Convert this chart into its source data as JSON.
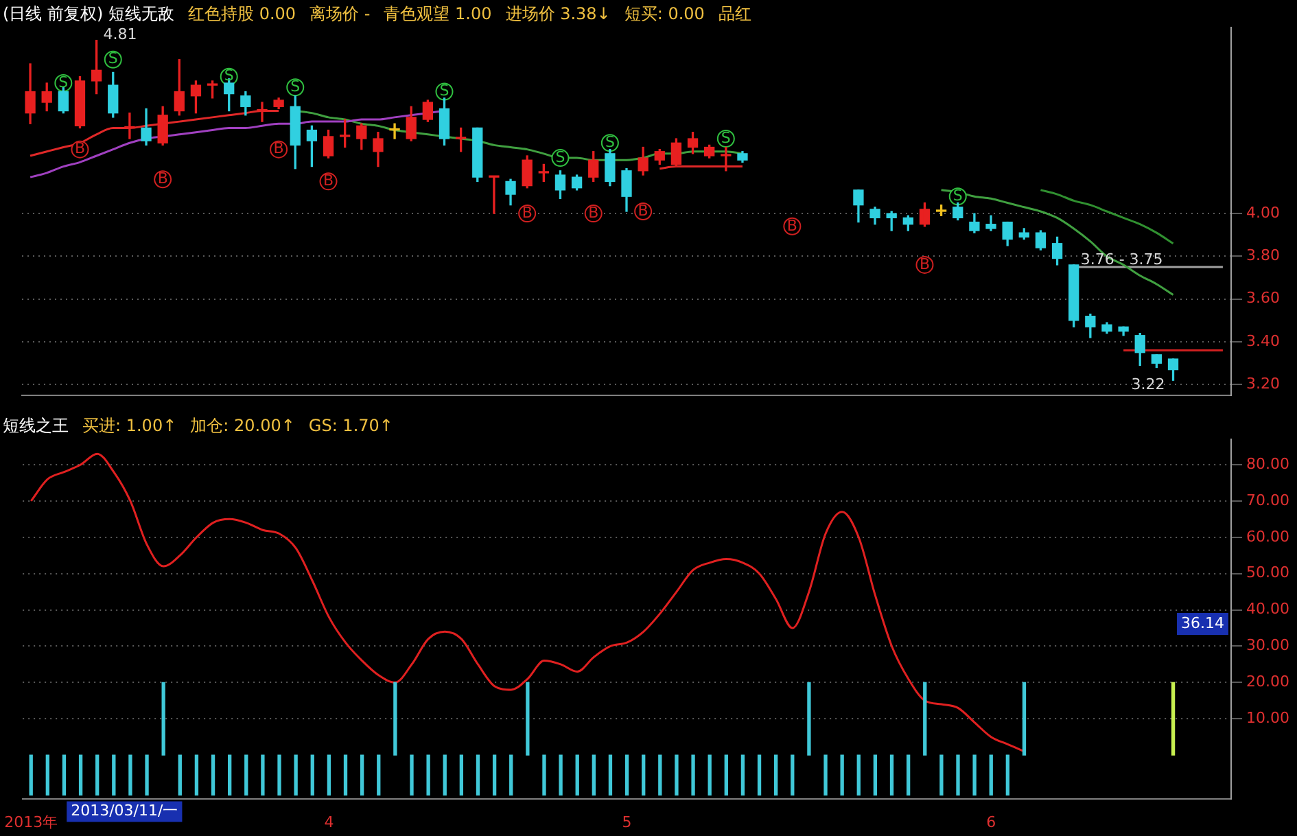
{
  "chart_data": [
    {
      "type": "candlestick",
      "title": "(日线 前复权) 短线无敌",
      "annotations": [
        "红色持股 0.00",
        "离场价 -",
        "青色观望 1.00",
        "进场价 3.38↓",
        "短买: 0.00",
        "品红"
      ],
      "categories": [
        null,
        null,
        null,
        null,
        null,
        null,
        null,
        null,
        null,
        null,
        null,
        null,
        null,
        null,
        null,
        null,
        null,
        null,
        null,
        null,
        null,
        null,
        null,
        null,
        null,
        null,
        null,
        null,
        null,
        null,
        null,
        null,
        null,
        null,
        null,
        null,
        null,
        null,
        null,
        null,
        null,
        null,
        null,
        null,
        null,
        null,
        null,
        null,
        null,
        null,
        null,
        null,
        null,
        null,
        null,
        null,
        null,
        null,
        null,
        null,
        null,
        null,
        null,
        null,
        null,
        null,
        null,
        null,
        null,
        null,
        null,
        null,
        null
      ],
      "ohlc": [
        [
          4.47,
          4.7,
          4.42,
          4.57
        ],
        [
          4.52,
          4.61,
          4.48,
          4.57
        ],
        [
          4.57,
          4.59,
          4.47,
          4.48
        ],
        [
          4.41,
          4.64,
          4.4,
          4.62
        ],
        [
          4.62,
          4.81,
          4.56,
          4.67
        ],
        [
          4.6,
          4.66,
          4.45,
          4.47
        ],
        [
          4.4,
          4.47,
          4.35,
          4.4
        ],
        [
          4.4,
          4.49,
          4.32,
          4.34
        ],
        [
          4.33,
          4.5,
          4.32,
          4.46
        ],
        [
          4.48,
          4.72,
          4.46,
          4.57
        ],
        [
          4.55,
          4.62,
          4.47,
          4.6
        ],
        [
          4.6,
          4.62,
          4.54,
          4.6
        ],
        [
          4.61,
          4.63,
          4.48,
          4.56
        ],
        [
          4.55,
          4.57,
          4.46,
          4.5
        ],
        [
          4.48,
          4.52,
          4.43,
          4.48
        ],
        [
          4.5,
          4.54,
          4.49,
          4.53
        ],
        [
          4.5,
          4.55,
          4.21,
          4.32
        ],
        [
          4.39,
          4.41,
          4.22,
          4.34
        ],
        [
          4.27,
          4.39,
          4.26,
          4.36
        ],
        [
          4.36,
          4.44,
          4.31,
          4.36
        ],
        [
          4.35,
          4.42,
          4.3,
          4.41
        ],
        [
          4.29,
          4.38,
          4.22,
          4.35
        ],
        [
          4.39,
          4.42,
          4.35,
          4.39
        ],
        [
          4.35,
          4.5,
          4.34,
          4.45
        ],
        [
          4.44,
          4.53,
          4.43,
          4.52
        ],
        [
          4.49,
          4.54,
          4.32,
          4.35
        ],
        [
          4.35,
          4.4,
          4.29,
          4.35
        ],
        [
          4.4,
          4.4,
          4.15,
          4.17
        ],
        [
          4.17,
          4.17,
          4.0,
          4.17
        ],
        [
          4.15,
          4.16,
          4.04,
          4.09
        ],
        [
          4.13,
          4.27,
          4.12,
          4.25
        ],
        [
          4.19,
          4.23,
          4.15,
          4.19
        ],
        [
          4.18,
          4.2,
          4.07,
          4.11
        ],
        [
          4.17,
          4.18,
          4.11,
          4.12
        ],
        [
          4.17,
          4.29,
          4.15,
          4.25
        ],
        [
          4.28,
          4.3,
          4.13,
          4.15
        ],
        [
          4.2,
          4.21,
          4.01,
          4.08
        ],
        [
          4.2,
          4.31,
          4.18,
          4.26
        ],
        [
          4.25,
          4.3,
          4.23,
          4.29
        ],
        [
          4.23,
          4.35,
          4.22,
          4.33
        ],
        [
          4.31,
          4.38,
          4.28,
          4.35
        ],
        [
          4.27,
          4.32,
          4.26,
          4.31
        ],
        [
          4.27,
          4.31,
          4.2,
          4.27
        ],
        [
          4.28,
          4.29,
          4.24,
          4.25
        ],
        null,
        null,
        null,
        null,
        null,
        null,
        [
          4.11,
          4.11,
          3.96,
          4.04
        ],
        [
          4.02,
          4.03,
          3.95,
          3.98
        ],
        [
          4.0,
          4.01,
          3.92,
          3.98
        ],
        [
          3.98,
          3.99,
          3.92,
          3.95
        ],
        [
          3.95,
          4.05,
          3.94,
          4.02
        ],
        [
          4.01,
          4.04,
          3.99,
          4.01
        ],
        [
          4.03,
          4.05,
          3.97,
          3.98
        ],
        [
          3.96,
          4.0,
          3.91,
          3.92
        ],
        [
          3.95,
          3.99,
          3.92,
          3.93
        ],
        [
          3.96,
          3.96,
          3.85,
          3.88
        ],
        [
          3.91,
          3.93,
          3.88,
          3.89
        ],
        [
          3.91,
          3.92,
          3.83,
          3.84
        ],
        [
          3.86,
          3.89,
          3.76,
          3.79
        ],
        [
          3.76,
          3.76,
          3.47,
          3.5
        ],
        [
          3.52,
          3.53,
          3.42,
          3.47
        ],
        [
          3.48,
          3.49,
          3.44,
          3.45
        ],
        [
          3.47,
          3.47,
          3.43,
          3.45
        ],
        [
          3.43,
          3.44,
          3.29,
          3.35
        ],
        [
          3.34,
          3.34,
          3.28,
          3.3
        ],
        [
          3.32,
          3.32,
          3.22,
          3.27
        ],
        null,
        null,
        null
      ],
      "colors": [
        "#e82020",
        "#e82020",
        "#30d0e0",
        "#e82020",
        "#e82020",
        "#30d0e0",
        "#e82020",
        "#30d0e0",
        "#e82020",
        "#e82020",
        "#e82020",
        "#e82020",
        "#30d0e0",
        "#30d0e0",
        "#e82020",
        "#e82020",
        "#30d0e0",
        "#30d0e0",
        "#e82020",
        "#e82020",
        "#e82020",
        "#e82020",
        "#f0c020",
        "#e82020",
        "#e82020",
        "#30d0e0",
        "#e82020",
        "#30d0e0",
        "#e82020",
        "#30d0e0",
        "#e82020",
        "#e82020",
        "#30d0e0",
        "#30d0e0",
        "#e82020",
        "#30d0e0",
        "#30d0e0",
        "#e82020",
        "#e82020",
        "#e82020",
        "#e82020",
        "#e82020",
        "#e82020",
        "#30d0e0",
        null,
        null,
        null,
        null,
        null,
        null,
        "#30d0e0",
        "#30d0e0",
        "#30d0e0",
        "#30d0e0",
        "#e82020",
        "#f0c020",
        "#30d0e0",
        "#30d0e0",
        "#30d0e0",
        "#30d0e0",
        "#30d0e0",
        "#30d0e0",
        "#30d0e0",
        "#30d0e0",
        "#30d0e0",
        "#30d0e0",
        "#30d0e0",
        "#30d0e0",
        "#30d0e0",
        "#30d0e0",
        null,
        null,
        null
      ],
      "value_labels": [
        null,
        null,
        null,
        null,
        "4.81",
        null,
        null,
        null,
        null,
        null,
        null,
        null,
        null,
        null,
        null,
        null,
        null,
        null,
        null,
        null,
        null,
        null,
        null,
        null,
        null,
        null,
        null,
        null,
        null,
        null,
        null,
        null,
        null,
        null,
        null,
        null,
        null,
        null,
        null,
        null,
        null,
        null,
        null,
        null,
        null,
        null,
        null,
        null,
        null,
        null,
        null,
        null,
        null,
        null,
        null,
        null,
        null,
        null,
        null,
        null,
        null,
        null,
        null,
        "3.76 - 3.75",
        null,
        null,
        null,
        null,
        null,
        "3.22",
        null,
        null,
        null
      ],
      "series": [
        {
          "type": "line",
          "color": "#e02828",
          "values": [
            4.27,
            4.29,
            4.31,
            4.33,
            4.37,
            4.4,
            4.4,
            4.41,
            4.42,
            4.43,
            4.44,
            4.45,
            4.46,
            4.47,
            4.48,
            4.48,
            null,
            null,
            null,
            null,
            null,
            null,
            null,
            null,
            null,
            null,
            null,
            null,
            null,
            null,
            null,
            null,
            null,
            null,
            null,
            null,
            null,
            null,
            4.21,
            4.22,
            4.22,
            4.22,
            4.22,
            4.22,
            null,
            null,
            null,
            null,
            null,
            null,
            null,
            null,
            null,
            null,
            null,
            null,
            null,
            null,
            null,
            null,
            null,
            null,
            null,
            null,
            null,
            null,
            null,
            null,
            null,
            null,
            null,
            null,
            null
          ]
        },
        {
          "type": "line",
          "color": "#a040c0",
          "values": [
            4.17,
            4.19,
            4.22,
            4.24,
            4.27,
            4.3,
            4.33,
            4.35,
            4.36,
            4.37,
            4.38,
            4.39,
            4.4,
            4.4,
            4.41,
            4.42,
            4.42,
            4.43,
            4.43,
            4.43,
            4.44,
            4.44,
            4.45,
            4.46,
            4.47,
            4.48,
            null,
            null,
            null,
            null,
            null,
            null,
            null,
            null,
            null,
            null,
            null,
            null,
            null,
            null,
            null,
            null,
            null,
            null,
            null,
            null,
            null,
            null,
            null,
            null,
            null,
            null,
            null,
            null,
            null,
            null,
            null,
            null,
            null,
            null,
            null,
            null,
            null,
            null,
            null,
            null,
            null,
            null,
            null,
            null,
            null,
            null,
            null
          ]
        },
        {
          "type": "line",
          "color": "#40a040",
          "values": [
            null,
            null,
            null,
            null,
            null,
            null,
            null,
            null,
            null,
            null,
            null,
            null,
            null,
            null,
            null,
            null,
            4.48,
            4.47,
            4.45,
            4.44,
            4.42,
            4.41,
            4.39,
            4.38,
            4.37,
            4.36,
            4.35,
            4.34,
            4.32,
            4.31,
            4.3,
            4.28,
            4.26,
            4.26,
            4.25,
            4.25,
            4.25,
            4.26,
            4.28,
            4.28,
            4.29,
            4.29,
            4.29,
            4.28,
            null,
            null,
            null,
            null,
            null,
            null,
            null,
            null,
            null,
            null,
            null,
            4.11,
            4.1,
            4.08,
            4.07,
            4.05,
            4.03,
            4.01,
            3.98,
            3.93,
            3.87,
            3.8,
            3.76,
            3.71,
            3.67,
            3.62,
            null,
            null,
            null
          ]
        },
        {
          "type": "line",
          "color": "#309030",
          "values": [
            null,
            null,
            null,
            null,
            null,
            null,
            null,
            null,
            null,
            null,
            null,
            null,
            null,
            null,
            null,
            null,
            null,
            null,
            null,
            null,
            null,
            null,
            null,
            null,
            null,
            null,
            null,
            null,
            null,
            null,
            null,
            null,
            null,
            null,
            null,
            null,
            null,
            null,
            null,
            null,
            null,
            null,
            null,
            null,
            null,
            null,
            null,
            null,
            null,
            null,
            null,
            null,
            null,
            null,
            null,
            null,
            null,
            null,
            null,
            null,
            null,
            4.11,
            4.09,
            4.06,
            4.04,
            4.01,
            3.98,
            3.95,
            3.91,
            3.86,
            null,
            null,
            null
          ]
        },
        {
          "type": "line",
          "color": "#a0a0a0",
          "values": [
            null,
            null,
            null,
            null,
            null,
            null,
            null,
            null,
            null,
            null,
            null,
            null,
            null,
            null,
            null,
            null,
            null,
            null,
            null,
            null,
            null,
            null,
            null,
            null,
            null,
            null,
            null,
            null,
            null,
            null,
            null,
            null,
            null,
            null,
            null,
            null,
            null,
            null,
            null,
            null,
            null,
            null,
            null,
            null,
            null,
            null,
            null,
            null,
            null,
            null,
            null,
            null,
            null,
            null,
            null,
            null,
            null,
            null,
            null,
            null,
            null,
            null,
            null,
            3.75,
            3.75,
            3.75,
            3.75,
            3.75,
            3.75,
            3.75,
            3.75,
            3.75,
            3.75
          ]
        },
        {
          "type": "line",
          "color": "#d02020",
          "values": [
            null,
            null,
            null,
            null,
            null,
            null,
            null,
            null,
            null,
            null,
            null,
            null,
            null,
            null,
            null,
            null,
            null,
            null,
            null,
            null,
            null,
            null,
            null,
            null,
            null,
            null,
            null,
            null,
            null,
            null,
            null,
            null,
            null,
            null,
            null,
            null,
            null,
            null,
            null,
            null,
            null,
            null,
            null,
            null,
            null,
            null,
            null,
            null,
            null,
            null,
            null,
            null,
            null,
            null,
            null,
            null,
            null,
            null,
            null,
            null,
            null,
            null,
            null,
            null,
            null,
            null,
            3.36,
            3.36,
            3.36,
            3.36,
            3.36,
            3.36,
            3.36
          ]
        },
        {
          "type": "scatter",
          "marker": "circle",
          "color": "#30c040",
          "values": [
            null,
            null,
            4.61,
            null,
            null,
            4.72,
            null,
            null,
            null,
            null,
            null,
            null,
            4.64,
            null,
            null,
            null,
            4.59,
            null,
            null,
            null,
            null,
            null,
            null,
            null,
            null,
            4.57,
            null,
            null,
            null,
            null,
            null,
            null,
            4.26,
            null,
            null,
            4.33,
            null,
            null,
            null,
            null,
            null,
            null,
            4.35,
            null,
            null,
            null,
            null,
            null,
            null,
            null,
            null,
            null,
            null,
            null,
            null,
            null,
            4.08,
            null,
            null,
            null,
            null,
            null,
            null,
            null,
            null,
            null,
            null,
            null,
            null,
            null,
            null,
            null,
            null
          ],
          "value_labels": [
            null,
            null,
            "S",
            null,
            null,
            "S",
            null,
            null,
            null,
            null,
            null,
            null,
            "S",
            null,
            null,
            null,
            "S",
            null,
            null,
            null,
            null,
            null,
            null,
            null,
            null,
            "S",
            null,
            null,
            null,
            null,
            null,
            null,
            "S",
            null,
            null,
            "S",
            null,
            null,
            null,
            null,
            null,
            null,
            "S",
            null,
            null,
            null,
            null,
            null,
            null,
            null,
            null,
            null,
            null,
            null,
            null,
            null,
            "S",
            null,
            null,
            null,
            null,
            null,
            null,
            null,
            null,
            null,
            null,
            null,
            null,
            null,
            null,
            null,
            null
          ]
        },
        {
          "type": "scatter",
          "marker": "circle",
          "color": "#d02020",
          "values": [
            null,
            null,
            null,
            4.3,
            null,
            null,
            null,
            null,
            4.16,
            null,
            null,
            null,
            null,
            null,
            null,
            4.3,
            null,
            null,
            4.15,
            null,
            null,
            null,
            null,
            null,
            null,
            null,
            null,
            null,
            null,
            null,
            4.0,
            null,
            null,
            null,
            4.0,
            null,
            null,
            4.01,
            null,
            null,
            null,
            null,
            null,
            null,
            null,
            null,
            3.94,
            null,
            null,
            null,
            null,
            null,
            null,
            null,
            3.76,
            null,
            null,
            null,
            null,
            null,
            null,
            null,
            null,
            null,
            null,
            null,
            null,
            null,
            null,
            null,
            null,
            null,
            null
          ],
          "value_labels": [
            null,
            null,
            null,
            "B",
            null,
            null,
            null,
            null,
            "B",
            null,
            null,
            null,
            null,
            null,
            null,
            "B",
            null,
            null,
            "B",
            null,
            null,
            null,
            null,
            null,
            null,
            null,
            null,
            null,
            null,
            null,
            "B",
            null,
            null,
            null,
            "B",
            null,
            null,
            "B",
            null,
            null,
            null,
            null,
            null,
            null,
            null,
            null,
            "B",
            null,
            null,
            null,
            null,
            null,
            null,
            null,
            "B",
            null,
            null,
            null,
            null,
            null,
            null,
            null,
            null,
            null,
            null,
            null,
            null,
            null,
            null,
            null,
            null,
            null,
            null
          ]
        }
      ],
      "ylim": [
        3.15,
        4.87
      ],
      "yticks": [
        {
          "value": 3.2,
          "label": "3.20"
        },
        {
          "value": 3.4,
          "label": "3.40"
        },
        {
          "value": 3.6,
          "label": "3.60"
        },
        {
          "value": 3.8,
          "label": "3.80"
        },
        {
          "value": 4.0,
          "label": "4.00"
        }
      ],
      "grid": "y",
      "tick_labels": "y"
    },
    {
      "type": "line",
      "title": "短线之王",
      "xlabel": "2013/03/11/一",
      "annotations": [
        "买进: 1.00↑",
        "加仓: 20.00↑",
        "GS: 1.70↑",
        {
          "text": "36.14",
          "y": 36.14
        }
      ],
      "categories": [
        "2013年",
        null,
        null,
        null,
        null,
        null,
        null,
        null,
        null,
        null,
        null,
        null,
        null,
        null,
        null,
        null,
        null,
        null,
        "4",
        null,
        null,
        null,
        null,
        null,
        null,
        null,
        null,
        null,
        null,
        null,
        null,
        null,
        null,
        null,
        null,
        null,
        "5",
        null,
        null,
        null,
        null,
        null,
        null,
        null,
        null,
        null,
        null,
        null,
        null,
        null,
        null,
        null,
        null,
        null,
        null,
        null,
        null,
        null,
        "6",
        null,
        null,
        null,
        null,
        null,
        null,
        null,
        null,
        null,
        null,
        null,
        null,
        null,
        null
      ],
      "series": [
        {
          "type": "line",
          "color": "#e02020",
          "values": [
            70,
            76,
            78,
            80,
            83,
            78,
            70,
            58,
            52,
            55,
            60,
            64,
            65,
            64,
            62,
            61,
            57,
            48,
            38,
            31,
            26,
            22,
            20,
            25,
            32,
            34,
            32,
            25,
            19,
            18,
            21,
            26,
            25,
            23,
            27,
            30,
            31,
            34,
            39,
            45,
            51,
            53,
            54,
            53,
            50,
            43,
            35,
            45,
            61,
            67,
            60,
            44,
            30,
            21,
            15,
            14,
            13,
            9,
            5,
            3,
            1,
            null,
            null,
            null,
            null,
            null,
            null,
            null,
            null,
            null,
            null,
            null,
            null
          ]
        },
        {
          "type": "bar",
          "values": [
            -11,
            -11,
            -11,
            -11,
            -11,
            -11,
            -11,
            -11,
            20,
            -11,
            -11,
            -11,
            -11,
            -11,
            -11,
            -11,
            -11,
            -11,
            -11,
            -11,
            -11,
            -11,
            20,
            -11,
            -11,
            -11,
            -11,
            -11,
            -11,
            -11,
            20,
            -11,
            -11,
            -11,
            -11,
            -11,
            -11,
            -11,
            -11,
            -11,
            -11,
            -11,
            -11,
            -11,
            -11,
            -11,
            -11,
            20,
            -11,
            -11,
            -11,
            -11,
            -11,
            -11,
            20,
            -11,
            -11,
            -11,
            -11,
            -11,
            20,
            null,
            null,
            null,
            null,
            null,
            null,
            null,
            null,
            20,
            null,
            null,
            null
          ],
          "colors": [
            "#40c8d8",
            "#40c8d8",
            "#40c8d8",
            "#40c8d8",
            "#40c8d8",
            "#40c8d8",
            "#40c8d8",
            "#40c8d8",
            "#40c8d8",
            "#40c8d8",
            "#40c8d8",
            "#40c8d8",
            "#40c8d8",
            "#40c8d8",
            "#40c8d8",
            "#40c8d8",
            "#40c8d8",
            "#40c8d8",
            "#40c8d8",
            "#40c8d8",
            "#40c8d8",
            "#40c8d8",
            "#40c8d8",
            "#40c8d8",
            "#40c8d8",
            "#40c8d8",
            "#40c8d8",
            "#40c8d8",
            "#40c8d8",
            "#40c8d8",
            "#40c8d8",
            "#40c8d8",
            "#40c8d8",
            "#40c8d8",
            "#40c8d8",
            "#40c8d8",
            "#40c8d8",
            "#40c8d8",
            "#40c8d8",
            "#40c8d8",
            "#40c8d8",
            "#40c8d8",
            "#40c8d8",
            "#40c8d8",
            "#40c8d8",
            "#40c8d8",
            "#40c8d8",
            "#40c8d8",
            "#40c8d8",
            "#40c8d8",
            "#40c8d8",
            "#40c8d8",
            "#40c8d8",
            "#40c8d8",
            "#40c8d8",
            "#40c8d8",
            "#40c8d8",
            "#40c8d8",
            "#40c8d8",
            "#40c8d8",
            "#40c8d8",
            null,
            null,
            null,
            null,
            null,
            null,
            null,
            null,
            "#c8f050",
            null,
            null,
            null
          ]
        }
      ],
      "ylim": [
        -12,
        87
      ],
      "yticks": [
        {
          "value": 10,
          "label": "10.00"
        },
        {
          "value": 20,
          "label": "20.00"
        },
        {
          "value": 30,
          "label": "30.00"
        },
        {
          "value": 40,
          "label": "40.00"
        },
        {
          "value": 50,
          "label": "50.00"
        },
        {
          "value": 60,
          "label": "60.00"
        },
        {
          "value": 70,
          "label": "70.00"
        },
        {
          "value": 80,
          "label": "80.00"
        }
      ],
      "grid": "y"
    }
  ]
}
